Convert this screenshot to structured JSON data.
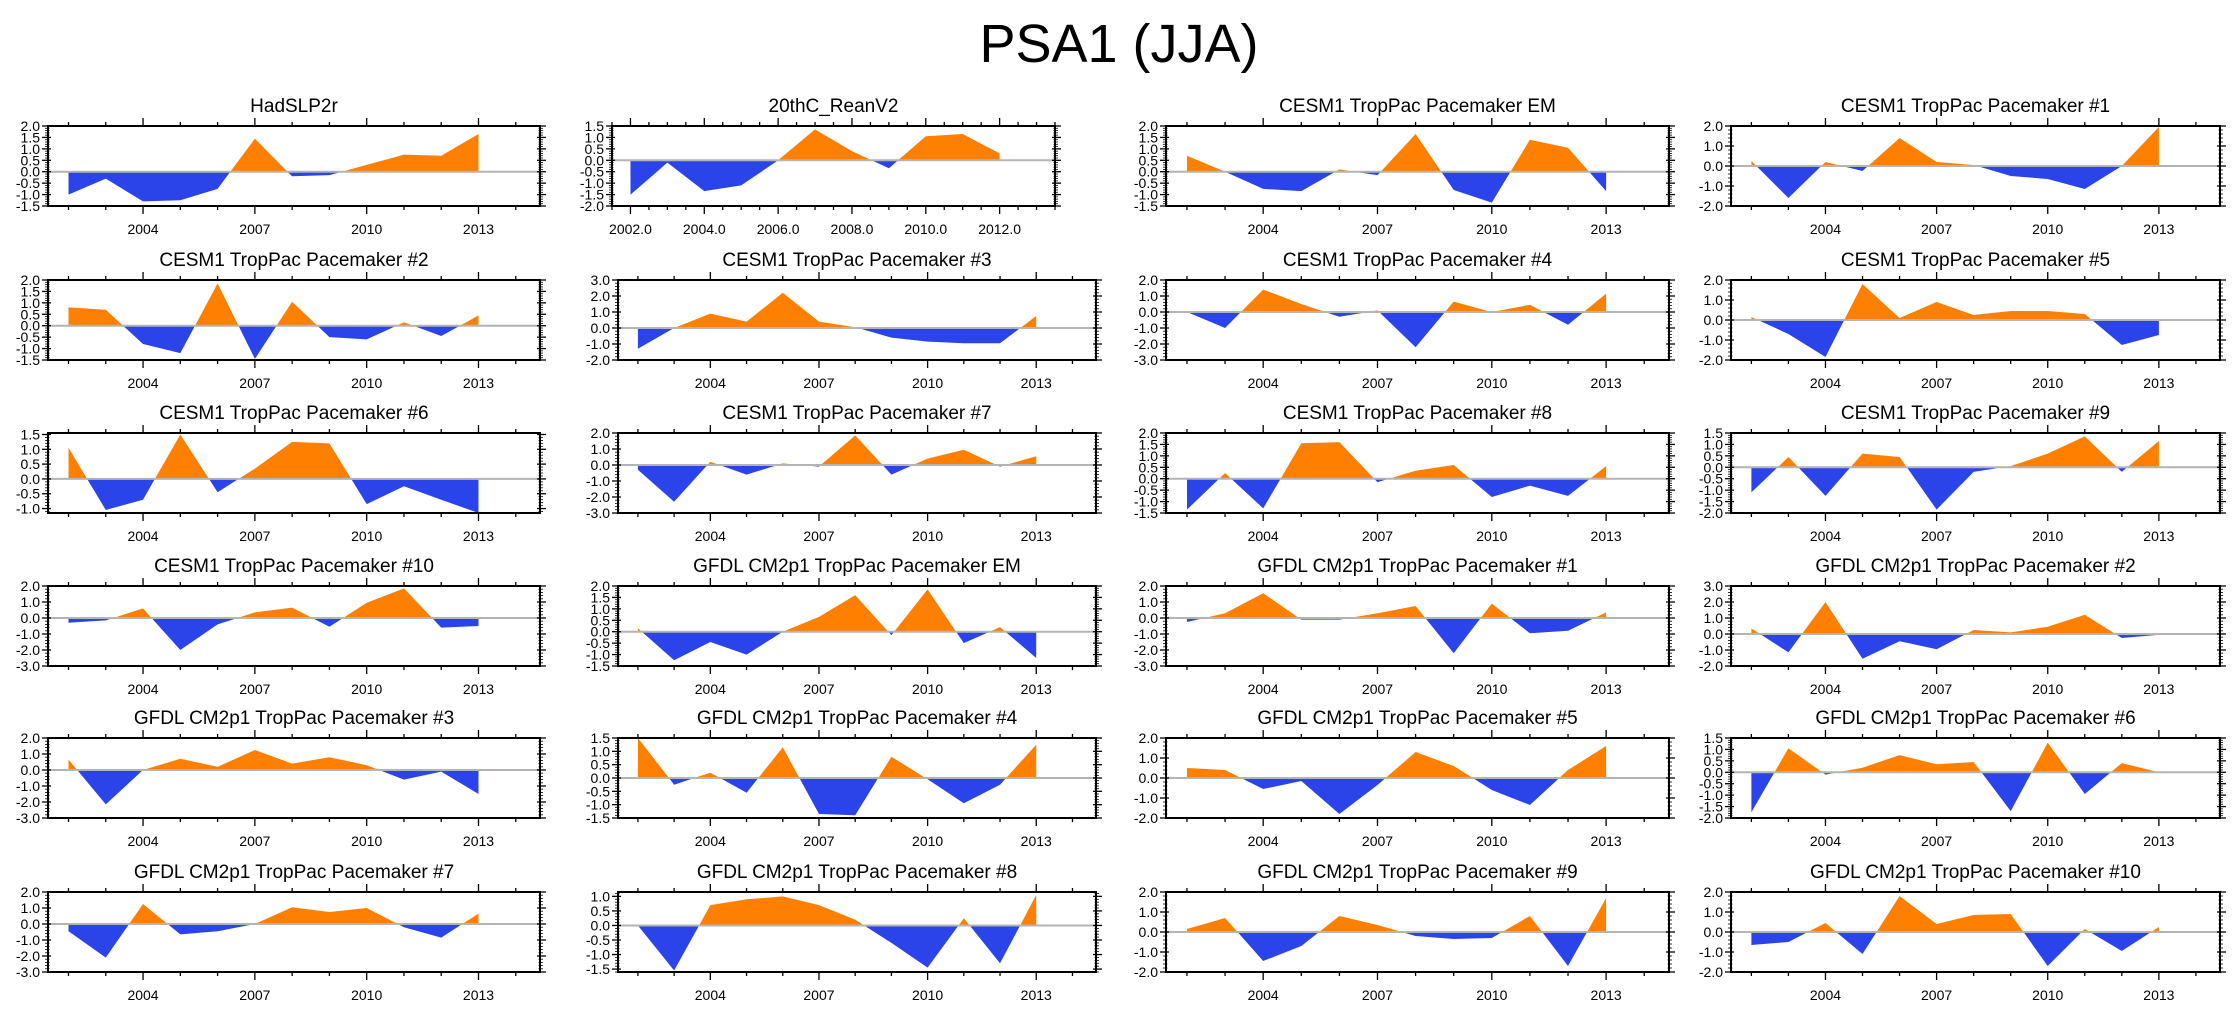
{
  "title": "PSA1 (JJA)",
  "colors": {
    "positive": "#ff8000",
    "negative": "#2a44ea",
    "zero_line": "#b4b4b4",
    "axis": "#000000"
  },
  "chart_data": {
    "type": "area",
    "layout": "6 rows x 4 columns",
    "grid": false,
    "panels": [
      {
        "title": "HadSLP2r",
        "x": [
          2002,
          2003,
          2004,
          2005,
          2006,
          2007,
          2008,
          2009,
          2010,
          2011,
          2012,
          2013
        ],
        "values": [
          -1.0,
          -0.3,
          -1.3,
          -1.25,
          -0.75,
          1.45,
          -0.2,
          -0.15,
          0.3,
          0.75,
          0.7,
          1.65
        ],
        "ylim": [
          -1.5,
          2.0
        ],
        "yticks": [
          "-1.5",
          "-1.0",
          "-0.5",
          "0.0",
          "0.5",
          "1.0",
          "1.5",
          "2.0"
        ],
        "xticks": [
          "2004",
          "2007",
          "2010",
          "2013"
        ]
      },
      {
        "title": "20thC_ReanV2",
        "x": [
          2002,
          2003,
          2004,
          2005,
          2006,
          2007,
          2008,
          2009,
          2010,
          2011,
          2012
        ],
        "values": [
          -1.5,
          -0.1,
          -1.35,
          -1.1,
          0.0,
          1.35,
          0.4,
          -0.35,
          1.05,
          1.15,
          0.3
        ],
        "ylim": [
          -2.0,
          1.5
        ],
        "yticks": [
          "-2.0",
          "-1.5",
          "-1.0",
          "-0.5",
          "0.0",
          "0.5",
          "1.0",
          "1.5"
        ],
        "xticks": [
          "2002.0",
          "2004.0",
          "2006.0",
          "2008.0",
          "2010.0",
          "2012.0"
        ]
      },
      {
        "title": "CESM1 TropPac Pacemaker EM",
        "x": [
          2002,
          2003,
          2004,
          2005,
          2006,
          2007,
          2008,
          2009,
          2010,
          2011,
          2012,
          2013
        ],
        "values": [
          0.7,
          0.0,
          -0.75,
          -0.85,
          0.1,
          -0.15,
          1.65,
          -0.8,
          -1.35,
          1.4,
          1.05,
          -0.85
        ],
        "ylim": [
          -1.5,
          2.0
        ],
        "yticks": [
          "-1.5",
          "-1.0",
          "-0.5",
          "0.0",
          "0.5",
          "1.0",
          "1.5",
          "2.0"
        ],
        "xticks": [
          "2004",
          "2007",
          "2010",
          "2013"
        ]
      },
      {
        "title": "CESM1 TropPac Pacemaker #1",
        "x": [
          2002,
          2003,
          2004,
          2005,
          2006,
          2007,
          2008,
          2009,
          2010,
          2011,
          2012,
          2013
        ],
        "values": [
          0.25,
          -1.6,
          0.2,
          -0.25,
          1.4,
          0.2,
          0.05,
          -0.5,
          -0.65,
          -1.15,
          0.0,
          1.95
        ],
        "ylim": [
          -2.0,
          2.0
        ],
        "yticks": [
          "-2.0",
          "-1.0",
          "0.0",
          "1.0",
          "2.0"
        ],
        "xticks": [
          "2004",
          "2007",
          "2010",
          "2013"
        ]
      },
      {
        "title": "CESM1 TropPac Pacemaker #2",
        "x": [
          2002,
          2003,
          2004,
          2005,
          2006,
          2007,
          2008,
          2009,
          2010,
          2011,
          2012,
          2013
        ],
        "values": [
          0.8,
          0.7,
          -0.8,
          -1.2,
          1.85,
          -1.45,
          1.05,
          -0.5,
          -0.6,
          0.15,
          -0.45,
          0.45
        ],
        "ylim": [
          -1.5,
          2.0
        ],
        "yticks": [
          "-1.5",
          "-1.0",
          "-0.5",
          "0.0",
          "0.5",
          "1.0",
          "1.5",
          "2.0"
        ],
        "xticks": [
          "2004",
          "2007",
          "2010",
          "2013"
        ]
      },
      {
        "title": "CESM1 TropPac Pacemaker #3",
        "x": [
          2002,
          2003,
          2004,
          2005,
          2006,
          2007,
          2008,
          2009,
          2010,
          2011,
          2012,
          2013
        ],
        "values": [
          -1.3,
          0.0,
          0.9,
          0.4,
          2.2,
          0.4,
          0.05,
          -0.6,
          -0.85,
          -0.95,
          -0.95,
          0.75
        ],
        "ylim": [
          -2.0,
          3.0
        ],
        "yticks": [
          "-2.0",
          "-1.0",
          "0.0",
          "1.0",
          "2.0",
          "3.0"
        ],
        "xticks": [
          "2004",
          "2007",
          "2010",
          "2013"
        ]
      },
      {
        "title": "CESM1 TropPac Pacemaker #4",
        "x": [
          2002,
          2003,
          2004,
          2005,
          2006,
          2007,
          2008,
          2009,
          2010,
          2011,
          2012,
          2013
        ],
        "values": [
          0.0,
          -1.0,
          1.4,
          0.5,
          -0.3,
          0.1,
          -2.2,
          0.65,
          0.0,
          0.45,
          -0.8,
          1.15
        ],
        "ylim": [
          -3.0,
          2.0
        ],
        "yticks": [
          "-3.0",
          "-2.0",
          "-1.0",
          "0.0",
          "1.0",
          "2.0"
        ],
        "xticks": [
          "2004",
          "2007",
          "2010",
          "2013"
        ]
      },
      {
        "title": "CESM1 TropPac Pacemaker #5",
        "x": [
          2002,
          2003,
          2004,
          2005,
          2006,
          2007,
          2008,
          2009,
          2010,
          2011,
          2012,
          2013
        ],
        "values": [
          0.15,
          -0.7,
          -1.85,
          1.8,
          0.1,
          0.9,
          0.25,
          0.45,
          0.45,
          0.3,
          -1.25,
          -0.75
        ],
        "ylim": [
          -2.0,
          2.0
        ],
        "yticks": [
          "-2.0",
          "-1.0",
          "0.0",
          "1.0",
          "2.0"
        ],
        "xticks": [
          "2004",
          "2007",
          "2010",
          "2013"
        ]
      },
      {
        "title": "CESM1 TropPac Pacemaker #6",
        "x": [
          2002,
          2003,
          2004,
          2005,
          2006,
          2007,
          2008,
          2009,
          2010,
          2011,
          2012,
          2013
        ],
        "values": [
          1.05,
          -1.05,
          -0.7,
          1.5,
          -0.45,
          0.35,
          1.25,
          1.2,
          -0.85,
          -0.25,
          -0.7,
          -1.15
        ],
        "ylim": [
          -1.15,
          1.55
        ],
        "yticks": [
          "-1.0",
          "-0.5",
          "0.0",
          "0.5",
          "1.0",
          "1.5"
        ],
        "xticks": [
          "2004",
          "2007",
          "2010",
          "2013"
        ]
      },
      {
        "title": "CESM1 TropPac Pacemaker #7",
        "x": [
          2002,
          2003,
          2004,
          2005,
          2006,
          2007,
          2008,
          2009,
          2010,
          2011,
          2012,
          2013
        ],
        "values": [
          -0.3,
          -2.3,
          0.2,
          -0.6,
          0.1,
          -0.1,
          1.85,
          -0.6,
          0.4,
          0.95,
          -0.1,
          0.55
        ],
        "ylim": [
          -3.0,
          2.0
        ],
        "yticks": [
          "-3.0",
          "-2.0",
          "-1.0",
          "0.0",
          "1.0",
          "2.0"
        ],
        "xticks": [
          "2004",
          "2007",
          "2010",
          "2013"
        ]
      },
      {
        "title": "CESM1 TropPac Pacemaker #8",
        "x": [
          2002,
          2003,
          2004,
          2005,
          2006,
          2007,
          2008,
          2009,
          2010,
          2011,
          2012,
          2013
        ],
        "values": [
          -1.35,
          0.25,
          -1.3,
          1.55,
          1.6,
          -0.15,
          0.35,
          0.6,
          -0.8,
          -0.3,
          -0.75,
          0.55
        ],
        "ylim": [
          -1.5,
          2.0
        ],
        "yticks": [
          "-1.5",
          "-1.0",
          "-0.5",
          "0.0",
          "0.5",
          "1.0",
          "1.5",
          "2.0"
        ],
        "xticks": [
          "2004",
          "2007",
          "2010",
          "2013"
        ]
      },
      {
        "title": "CESM1 TropPac Pacemaker #9",
        "x": [
          2002,
          2003,
          2004,
          2005,
          2006,
          2007,
          2008,
          2009,
          2010,
          2011,
          2012,
          2013
        ],
        "values": [
          -1.1,
          0.45,
          -1.25,
          0.6,
          0.45,
          -1.85,
          -0.2,
          0.05,
          0.6,
          1.35,
          -0.2,
          1.15
        ],
        "ylim": [
          -2.0,
          1.5
        ],
        "yticks": [
          "-2.0",
          "-1.5",
          "-1.0",
          "-0.5",
          "0.0",
          "0.5",
          "1.0",
          "1.5"
        ],
        "xticks": [
          "2004",
          "2007",
          "2010",
          "2013"
        ]
      },
      {
        "title": "CESM1 TropPac Pacemaker #10",
        "x": [
          2002,
          2003,
          2004,
          2005,
          2006,
          2007,
          2008,
          2009,
          2010,
          2011,
          2012,
          2013
        ],
        "values": [
          -0.3,
          -0.15,
          0.6,
          -2.0,
          -0.4,
          0.35,
          0.65,
          -0.55,
          0.95,
          1.85,
          -0.6,
          -0.5
        ],
        "ylim": [
          -3.0,
          2.0
        ],
        "yticks": [
          "-3.0",
          "-2.0",
          "-1.0",
          "0.0",
          "1.0",
          "2.0"
        ],
        "xticks": [
          "2004",
          "2007",
          "2010",
          "2013"
        ]
      },
      {
        "title": "GFDL CM2p1 TropPac Pacemaker EM",
        "x": [
          2002,
          2003,
          2004,
          2005,
          2006,
          2007,
          2008,
          2009,
          2010,
          2011,
          2012,
          2013
        ],
        "values": [
          0.15,
          -1.25,
          -0.45,
          -1.0,
          0.0,
          0.65,
          1.6,
          -0.15,
          1.85,
          -0.5,
          0.2,
          -1.15
        ],
        "ylim": [
          -1.5,
          2.0
        ],
        "yticks": [
          "-1.5",
          "-1.0",
          "-0.5",
          "0.0",
          "0.5",
          "1.0",
          "1.5",
          "2.0"
        ],
        "xticks": [
          "2004",
          "2007",
          "2010",
          "2013"
        ]
      },
      {
        "title": "GFDL CM2p1 TropPac Pacemaker #1",
        "x": [
          2002,
          2003,
          2004,
          2005,
          2006,
          2007,
          2008,
          2009,
          2010,
          2011,
          2012,
          2013
        ],
        "values": [
          -0.25,
          0.3,
          1.55,
          -0.1,
          -0.1,
          0.3,
          0.75,
          -2.2,
          0.9,
          -0.95,
          -0.8,
          0.35
        ],
        "ylim": [
          -3.0,
          2.0
        ],
        "yticks": [
          "-3.0",
          "-2.0",
          "-1.0",
          "0.0",
          "1.0",
          "2.0"
        ],
        "xticks": [
          "2004",
          "2007",
          "2010",
          "2013"
        ]
      },
      {
        "title": "GFDL CM2p1 TropPac Pacemaker #2",
        "x": [
          2002,
          2003,
          2004,
          2005,
          2006,
          2007,
          2008,
          2009,
          2010,
          2011,
          2012,
          2013
        ],
        "values": [
          0.35,
          -1.15,
          2.0,
          -1.55,
          -0.45,
          -0.95,
          0.25,
          0.1,
          0.45,
          1.2,
          -0.25,
          -0.05
        ],
        "ylim": [
          -2.0,
          3.0
        ],
        "yticks": [
          "-2.0",
          "-1.0",
          "0.0",
          "1.0",
          "2.0",
          "3.0"
        ],
        "xticks": [
          "2004",
          "2007",
          "2010",
          "2013"
        ]
      },
      {
        "title": "GFDL CM2p1 TropPac Pacemaker #3",
        "x": [
          2002,
          2003,
          2004,
          2005,
          2006,
          2007,
          2008,
          2009,
          2010,
          2011,
          2012,
          2013
        ],
        "values": [
          0.65,
          -2.15,
          0.0,
          0.7,
          0.2,
          1.25,
          0.4,
          0.8,
          0.3,
          -0.6,
          -0.1,
          -1.5
        ],
        "ylim": [
          -3.0,
          2.0
        ],
        "yticks": [
          "-3.0",
          "-2.0",
          "-1.0",
          "0.0",
          "1.0",
          "2.0"
        ],
        "xticks": [
          "2004",
          "2007",
          "2010",
          "2013"
        ]
      },
      {
        "title": "GFDL CM2p1 TropPac Pacemaker #4",
        "x": [
          2002,
          2003,
          2004,
          2005,
          2006,
          2007,
          2008,
          2009,
          2010,
          2011,
          2012,
          2013
        ],
        "values": [
          1.5,
          -0.25,
          0.2,
          -0.55,
          1.15,
          -1.35,
          -1.4,
          0.8,
          -0.05,
          -0.95,
          -0.25,
          1.25
        ],
        "ylim": [
          -1.5,
          1.5
        ],
        "yticks": [
          "-1.5",
          "-1.0",
          "-0.5",
          "0.0",
          "0.5",
          "1.0",
          "1.5"
        ],
        "xticks": [
          "2004",
          "2007",
          "2010",
          "2013"
        ]
      },
      {
        "title": "GFDL CM2p1 TropPac Pacemaker #5",
        "x": [
          2002,
          2003,
          2004,
          2005,
          2006,
          2007,
          2008,
          2009,
          2010,
          2011,
          2012,
          2013
        ],
        "values": [
          0.5,
          0.4,
          -0.55,
          -0.15,
          -1.8,
          -0.35,
          1.3,
          0.6,
          -0.6,
          -1.35,
          0.4,
          1.6
        ],
        "ylim": [
          -2.0,
          2.0
        ],
        "yticks": [
          "-2.0",
          "-1.0",
          "0.0",
          "1.0",
          "2.0"
        ],
        "xticks": [
          "2004",
          "2007",
          "2010",
          "2013"
        ]
      },
      {
        "title": "GFDL CM2p1 TropPac Pacemaker #6",
        "x": [
          2002,
          2003,
          2004,
          2005,
          2006,
          2007,
          2008,
          2009,
          2010,
          2011,
          2012,
          2013
        ],
        "values": [
          -1.75,
          1.05,
          -0.1,
          0.2,
          0.75,
          0.35,
          0.45,
          -1.7,
          1.3,
          -0.95,
          0.4,
          0.0
        ],
        "ylim": [
          -2.0,
          1.5
        ],
        "yticks": [
          "-2.0",
          "-1.5",
          "-1.0",
          "-0.5",
          "0.0",
          "0.5",
          "1.0",
          "1.5"
        ],
        "xticks": [
          "2004",
          "2007",
          "2010",
          "2013"
        ]
      },
      {
        "title": "GFDL CM2p1 TropPac Pacemaker #7",
        "x": [
          2002,
          2003,
          2004,
          2005,
          2006,
          2007,
          2008,
          2009,
          2010,
          2011,
          2012,
          2013
        ],
        "values": [
          -0.45,
          -2.1,
          1.25,
          -0.65,
          -0.45,
          0.0,
          1.05,
          0.75,
          1.0,
          -0.2,
          -0.85,
          0.65
        ],
        "ylim": [
          -3.0,
          2.0
        ],
        "yticks": [
          "-3.0",
          "-2.0",
          "-1.0",
          "0.0",
          "1.0",
          "2.0"
        ],
        "xticks": [
          "2004",
          "2007",
          "2010",
          "2013"
        ]
      },
      {
        "title": "GFDL CM2p1 TropPac Pacemaker #8",
        "x": [
          2002,
          2003,
          2004,
          2005,
          2006,
          2007,
          2008,
          2009,
          2010,
          2011,
          2012,
          2013
        ],
        "values": [
          0.0,
          -1.55,
          0.7,
          0.9,
          1.0,
          0.7,
          0.2,
          -0.6,
          -1.45,
          0.25,
          -1.3,
          1.05
        ],
        "ylim": [
          -1.6,
          1.15
        ],
        "yticks": [
          "-1.5",
          "-1.0",
          "-0.5",
          "0.0",
          "0.5",
          "1.0"
        ],
        "xticks": [
          "2004",
          "2007",
          "2010",
          "2013"
        ]
      },
      {
        "title": "GFDL CM2p1 TropPac Pacemaker #9",
        "x": [
          2002,
          2003,
          2004,
          2005,
          2006,
          2007,
          2008,
          2009,
          2010,
          2011,
          2012,
          2013
        ],
        "values": [
          0.15,
          0.7,
          -1.45,
          -0.7,
          0.8,
          0.35,
          -0.2,
          -0.35,
          -0.3,
          0.8,
          -1.7,
          1.7
        ],
        "ylim": [
          -2.0,
          2.0
        ],
        "yticks": [
          "-2.0",
          "-1.0",
          "0.0",
          "1.0",
          "2.0"
        ],
        "xticks": [
          "2004",
          "2007",
          "2010",
          "2013"
        ]
      },
      {
        "title": "GFDL CM2p1 TropPac Pacemaker #10",
        "x": [
          2002,
          2003,
          2004,
          2005,
          2006,
          2007,
          2008,
          2009,
          2010,
          2011,
          2012,
          2013
        ],
        "values": [
          -0.65,
          -0.5,
          0.45,
          -1.1,
          1.8,
          0.4,
          0.85,
          0.9,
          -1.7,
          0.15,
          -0.95,
          0.25
        ],
        "ylim": [
          -2.0,
          2.0
        ],
        "yticks": [
          "-2.0",
          "-1.0",
          "0.0",
          "1.0",
          "2.0"
        ],
        "xticks": [
          "2004",
          "2007",
          "2010",
          "2013"
        ]
      }
    ]
  }
}
